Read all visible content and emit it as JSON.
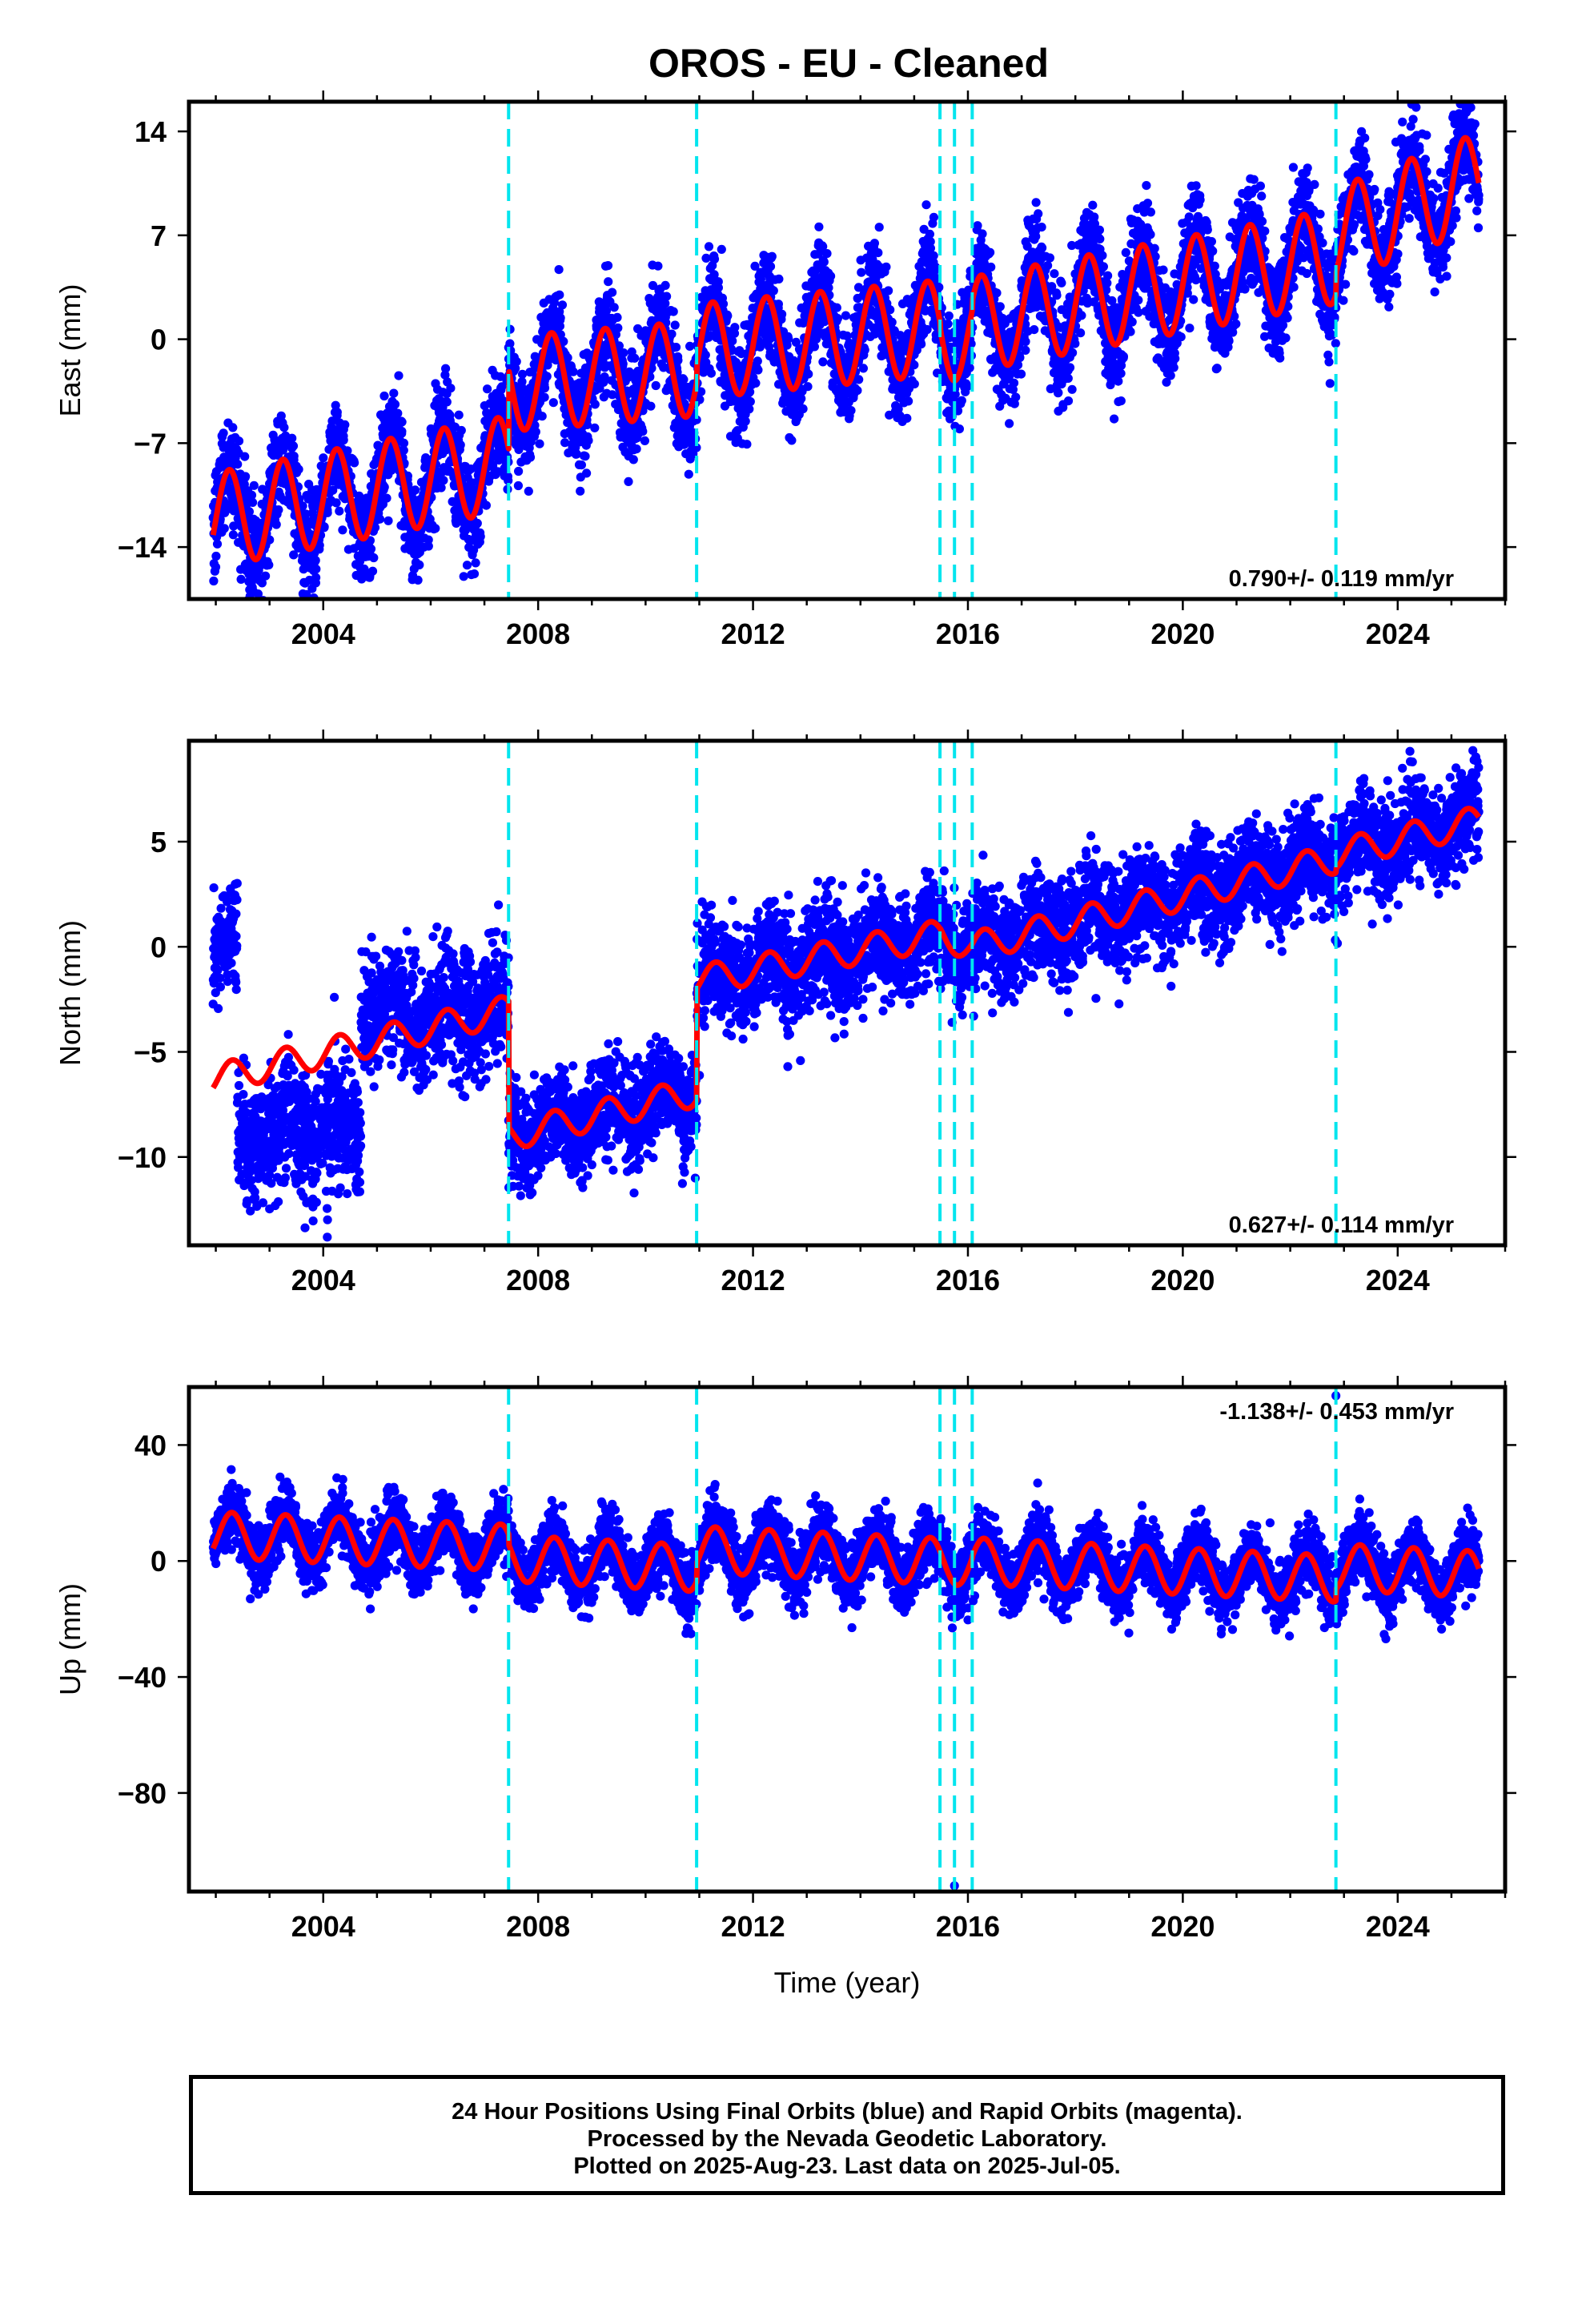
{
  "title": "OROS  - EU - Cleaned",
  "xlabel": "Time (year)",
  "colors": {
    "data": "#0000ff",
    "model": "#ff0000",
    "breaks": "#00e5ee"
  },
  "footer": {
    "line1": "24 Hour Positions Using Final Orbits (blue) and Rapid Orbits (magenta).",
    "line2": "Processed by the Nevada Geodetic Laboratory.",
    "line3": "Plotted on 2025-Aug-23. Last data on 2025-Jul-05."
  },
  "chart_data": [
    {
      "type": "scatter",
      "component": "east",
      "ylabel": "East (mm)",
      "xlim": [
        2001.5,
        2026.0
      ],
      "ylim": [
        -17.5,
        16.0
      ],
      "xticks": [
        2004,
        2008,
        2012,
        2016,
        2020,
        2024
      ],
      "yticks": [
        14,
        7,
        0,
        -7,
        -14
      ],
      "ytick_labels": [
        "14",
        "7",
        "0",
        "−7",
        "−14"
      ],
      "rate_text": "0.790+/- 0.119 mm/yr",
      "rate_position": "bottom-right",
      "break_epochs": [
        2007.45,
        2010.95,
        2015.48,
        2015.75,
        2016.08,
        2022.85
      ],
      "data_range": [
        2001.95,
        2025.51
      ],
      "model": {
        "segments": [
          {
            "x0": 2001.95,
            "x1": 2007.45,
            "y_start": -12.2,
            "slope": 0.7
          },
          {
            "x0": 2007.45,
            "x1": 2010.95,
            "y_start": -3.0,
            "slope": 0.29
          },
          {
            "x0": 2010.95,
            "x1": 2015.48,
            "y_start": -0.8,
            "slope": 0.35
          },
          {
            "x0": 2015.48,
            "x1": 2016.08,
            "y_start": 0.4,
            "slope": 0.0
          },
          {
            "x0": 2016.08,
            "x1": 2022.85,
            "y_start": 1.0,
            "slope": 0.68
          },
          {
            "x0": 2022.85,
            "x1": 2025.51,
            "y_start": 7.0,
            "slope": 1.4
          }
        ],
        "annual_amplitude": 3.2,
        "annual_phase": 0.25
      },
      "scatter_sigma": 1.7
    },
    {
      "type": "scatter",
      "component": "north",
      "ylabel": "North (mm)",
      "xlim": [
        2001.5,
        2026.0
      ],
      "ylim": [
        -14.2,
        9.8
      ],
      "xticks": [
        2004,
        2008,
        2012,
        2016,
        2020,
        2024
      ],
      "yticks": [
        5,
        0,
        -5,
        -10
      ],
      "ytick_labels": [
        "5",
        "0",
        "−5",
        "−10"
      ],
      "rate_text": "0.627+/- 0.114 mm/yr",
      "rate_position": "bottom-right",
      "break_epochs": [
        2007.45,
        2010.95,
        2015.48,
        2015.75,
        2016.08,
        2022.85
      ],
      "data_range": [
        2001.95,
        2025.51
      ],
      "model": {
        "segments": [
          {
            "x0": 2001.95,
            "x1": 2007.45,
            "y_start": -6.3,
            "slope": 0.6
          },
          {
            "x0": 2007.45,
            "x1": 2010.95,
            "y_start": -9.0,
            "slope": 0.6
          },
          {
            "x0": 2010.95,
            "x1": 2015.48,
            "y_start": -1.6,
            "slope": 0.48
          },
          {
            "x0": 2015.48,
            "x1": 2016.08,
            "y_start": 0.6,
            "slope": -1.0
          },
          {
            "x0": 2016.08,
            "x1": 2022.85,
            "y_start": 0.0,
            "slope": 0.62
          },
          {
            "x0": 2022.85,
            "x1": 2025.51,
            "y_start": 4.4,
            "slope": 0.6
          }
        ],
        "annual_amplitude": 0.7,
        "annual_phase": 0.3
      },
      "data_offsets": [
        {
          "x0": 2001.95,
          "x1": 2002.4,
          "y": 0.0,
          "sigma": 1.2
        },
        {
          "x0": 2002.4,
          "x1": 2004.7,
          "y": -8.8,
          "sigma": 1.5
        },
        {
          "x0": 2004.7,
          "x1": 2007.45,
          "y": -3.0,
          "sigma": 1.4
        }
      ],
      "scatter_sigma": 1.2
    },
    {
      "type": "scatter",
      "component": "up",
      "ylabel": "Up (mm)",
      "xlim": [
        2001.5,
        2026.0
      ],
      "ylim": [
        -114,
        60
      ],
      "xticks": [
        2004,
        2008,
        2012,
        2016,
        2020,
        2024
      ],
      "yticks": [
        40,
        0,
        -40,
        -80
      ],
      "ytick_labels": [
        "40",
        "0",
        "−40",
        "−80"
      ],
      "rate_text": "-1.138+/- 0.453 mm/yr",
      "rate_position": "top-right",
      "break_epochs": [
        2007.45,
        2010.95,
        2015.48,
        2015.75,
        2016.08,
        2022.85
      ],
      "data_range": [
        2001.95,
        2025.51
      ],
      "model": {
        "segments": [
          {
            "x0": 2001.95,
            "x1": 2007.45,
            "y_start": 9.0,
            "slope": -0.8
          },
          {
            "x0": 2007.45,
            "x1": 2010.95,
            "y_start": 1.0,
            "slope": -1.0
          },
          {
            "x0": 2010.95,
            "x1": 2015.48,
            "y_start": 4.0,
            "slope": -0.9
          },
          {
            "x0": 2015.48,
            "x1": 2016.08,
            "y_start": 0.0,
            "slope": -1.0
          },
          {
            "x0": 2016.08,
            "x1": 2022.85,
            "y_start": 0.0,
            "slope": -0.9
          },
          {
            "x0": 2022.85,
            "x1": 2025.51,
            "y_start": -2.0,
            "slope": -1.0
          }
        ],
        "annual_amplitude": 8.0,
        "annual_phase": 0.3
      },
      "scatter_sigma": 5.5,
      "outliers": [
        {
          "x": 2022.85,
          "y": 57
        },
        {
          "x": 2015.75,
          "y": -112
        }
      ]
    }
  ]
}
